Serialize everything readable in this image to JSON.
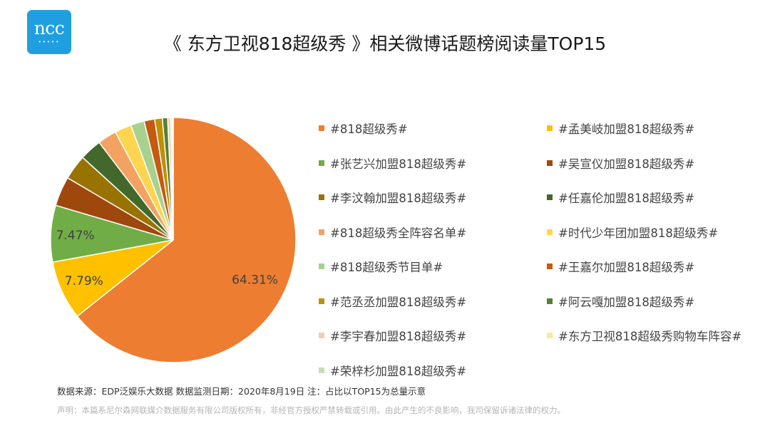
{
  "logo": {
    "text": "ncc",
    "dots": "•••••"
  },
  "header": {
    "title": "《 东方卫视818超级秀 》相关微博话题榜阅读量TOP15"
  },
  "chart_data": {
    "type": "pie",
    "title": "《 东方卫视818超级秀 》相关微博话题榜阅读量TOP15",
    "start_angle_deg": 0,
    "direction": "clockwise",
    "legend_position": "right",
    "slices": [
      {
        "label": "#818超级秀#",
        "value": 64.31,
        "color": "#ED7D31",
        "data_label": "64.31%"
      },
      {
        "label": "#孟美岐加盟818超级秀#",
        "value": 7.79,
        "color": "#FFC000",
        "data_label": "7.79%"
      },
      {
        "label": "#张艺兴加盟818超级秀#",
        "value": 7.47,
        "color": "#70AD47",
        "data_label": "7.47%"
      },
      {
        "label": "#吴宣仪加盟818超级秀#",
        "value": 3.9,
        "color": "#9E480E",
        "data_label": ""
      },
      {
        "label": "#李汶翰加盟818超级秀#",
        "value": 3.3,
        "color": "#997300",
        "data_label": ""
      },
      {
        "label": "#任嘉伦加盟818超级秀#",
        "value": 2.9,
        "color": "#43682B",
        "data_label": ""
      },
      {
        "label": "#818超级秀全阵容名单#",
        "value": 2.5,
        "color": "#F4A261",
        "data_label": ""
      },
      {
        "label": "#时代少年团加盟818超级秀#",
        "value": 2.2,
        "color": "#FFD54F",
        "data_label": ""
      },
      {
        "label": "#818超级秀节目单#",
        "value": 1.8,
        "color": "#A9D18E",
        "data_label": ""
      },
      {
        "label": "#王嘉尔加盟818超级秀#",
        "value": 1.4,
        "color": "#C55A11",
        "data_label": ""
      },
      {
        "label": "#范丞丞加盟818超级秀#",
        "value": 1.0,
        "color": "#BF9000",
        "data_label": ""
      },
      {
        "label": "#阿云嘎加盟818超级秀#",
        "value": 0.7,
        "color": "#548235",
        "data_label": ""
      },
      {
        "label": "#李宇春加盟818超级秀#",
        "value": 0.4,
        "color": "#F8CBAD",
        "data_label": ""
      },
      {
        "label": "#东方卫视818超级秀购物车阵容#",
        "value": 0.23,
        "color": "#FFE699",
        "data_label": ""
      },
      {
        "label": "#荣梓杉加盟818超级秀#",
        "value": 0.1,
        "color": "#C5E0B4",
        "data_label": ""
      }
    ]
  },
  "footer": {
    "source": "数据来源：EDP泛娱乐大数据  数据监测日期：2020年8月19日    注：占比以TOP15为总量示意",
    "disclaimer": "声明：本篇系尼尔森网联媒介数据服务有限公司版权所有，非经官方授权严禁转载或引用。由此产生的不良影响，我司保留诉诸法律的权力。"
  }
}
